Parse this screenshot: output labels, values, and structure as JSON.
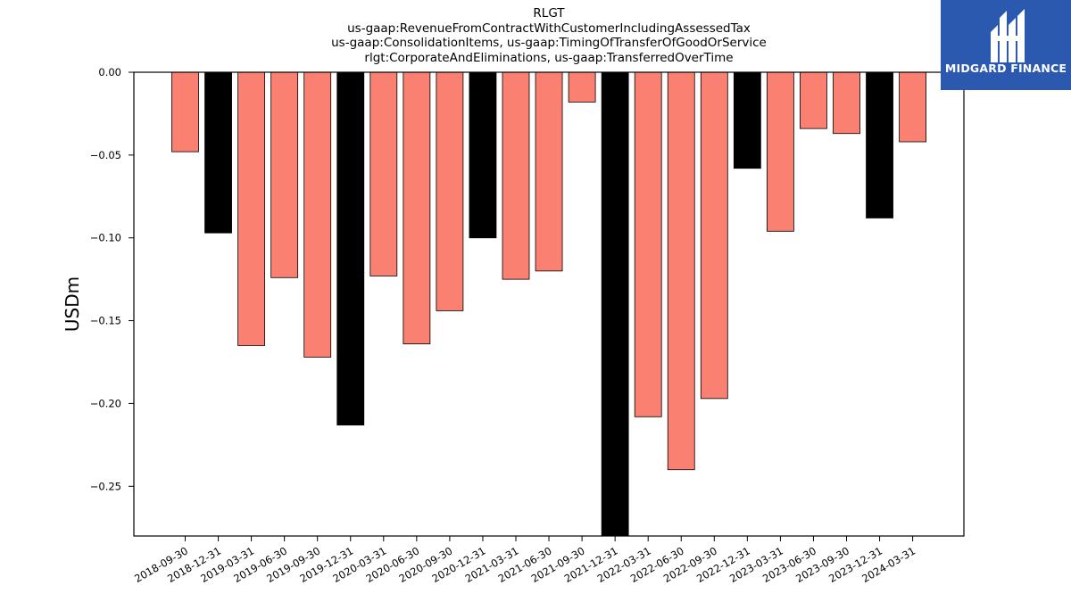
{
  "chart_data": {
    "type": "bar",
    "title_lines": [
      "RLGT",
      "us-gaap:RevenueFromContractWithCustomerIncludingAssessedTax",
      "us-gaap:ConsolidationItems, us-gaap:TimingOfTransferOfGoodOrService",
      "rlgt:CorporateAndEliminations, us-gaap:TransferredOverTime"
    ],
    "ylabel": "USDm",
    "xlabel": "",
    "ylim": [
      -0.28,
      0.0
    ],
    "yticks": [
      0.0,
      -0.05,
      -0.1,
      -0.15,
      -0.2,
      -0.25
    ],
    "ytick_labels": [
      "0.00",
      "−0.05",
      "−0.10",
      "−0.15",
      "−0.20",
      "−0.25"
    ],
    "grid": false,
    "categories": [
      "2018-09-30",
      "2018-12-31",
      "2019-03-31",
      "2019-06-30",
      "2019-09-30",
      "2019-12-31",
      "2020-03-31",
      "2020-06-30",
      "2020-09-30",
      "2020-12-31",
      "2021-03-31",
      "2021-06-30",
      "2021-09-30",
      "2021-12-31",
      "2022-03-31",
      "2022-06-30",
      "2022-09-30",
      "2022-12-31",
      "2023-03-31",
      "2023-06-30",
      "2023-09-30",
      "2023-12-31",
      "2024-03-31"
    ],
    "values": [
      -0.048,
      -0.097,
      -0.165,
      -0.124,
      -0.172,
      -0.213,
      -0.123,
      -0.164,
      -0.144,
      -0.1,
      -0.125,
      -0.12,
      -0.018,
      -0.28,
      -0.208,
      -0.24,
      -0.197,
      -0.058,
      -0.096,
      -0.034,
      -0.037,
      -0.088,
      -0.042
    ],
    "bar_colors": [
      "#fa8072",
      "#000000",
      "#fa8072",
      "#fa8072",
      "#fa8072",
      "#000000",
      "#fa8072",
      "#fa8072",
      "#fa8072",
      "#000000",
      "#fa8072",
      "#fa8072",
      "#fa8072",
      "#000000",
      "#fa8072",
      "#fa8072",
      "#fa8072",
      "#000000",
      "#fa8072",
      "#fa8072",
      "#fa8072",
      "#000000",
      "#fa8072"
    ]
  },
  "logo": {
    "text": "MIDGARD FINANCE",
    "background": "#2b59b0",
    "icon": "midgard-logo-icon"
  }
}
